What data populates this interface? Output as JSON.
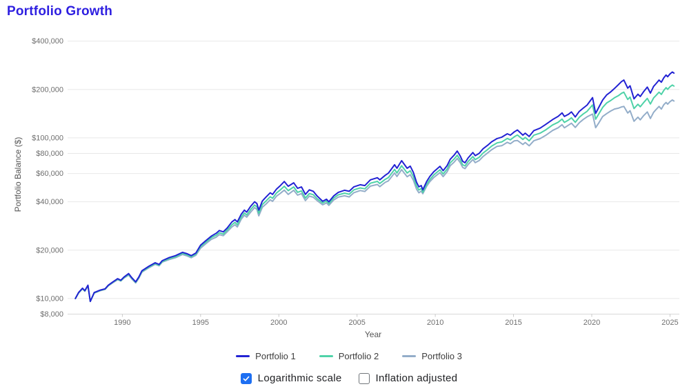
{
  "theme": {
    "title_color": "#2e1fe0",
    "checkbox_blue": "#1d6ff2",
    "grid_color": "#e8e8e8",
    "axis_line_color": "#d9d9d9",
    "tick_mark_color": "#c9c9c9",
    "tick_text_color": "#6e6e6e",
    "axis_title_text_color": "#555555"
  },
  "controls": {
    "log_scale": {
      "label": "Logarithmic scale",
      "checked": true
    },
    "inflation_adjusted": {
      "label": "Inflation adjusted",
      "checked": false
    }
  },
  "chart_data": {
    "type": "line",
    "title": "Portfolio Growth",
    "xlabel": "Year",
    "ylabel": "Portfolio Balance ($)",
    "x_scale": "linear",
    "y_scale": "log",
    "grid": "horizontal",
    "legend_position": "bottom",
    "x_range": [
      1986.5,
      2025.6
    ],
    "y_range": [
      8000,
      440000
    ],
    "x_ticks": [
      1990,
      1995,
      2000,
      2005,
      2010,
      2015,
      2020,
      2025
    ],
    "y_ticks": [
      8000,
      10000,
      20000,
      40000,
      60000,
      80000,
      100000,
      200000,
      400000
    ],
    "y_tick_labels": [
      "$8,000",
      "$10,000",
      "$20,000",
      "$40,000",
      "$60,000",
      "$80,000",
      "$100,000",
      "$200,000",
      "$400,000"
    ],
    "x": [
      1987.0,
      1987.2,
      1987.45,
      1987.6,
      1987.8,
      1987.95,
      1988.2,
      1988.6,
      1988.9,
      1989.1,
      1989.4,
      1989.7,
      1989.9,
      1990.1,
      1990.4,
      1990.6,
      1990.85,
      1991.05,
      1991.25,
      1991.7,
      1992.1,
      1992.35,
      1992.55,
      1993.0,
      1993.4,
      1993.85,
      1994.15,
      1994.4,
      1994.7,
      1995.0,
      1995.35,
      1995.7,
      1996.0,
      1996.2,
      1996.45,
      1996.7,
      1997.0,
      1997.2,
      1997.35,
      1997.6,
      1997.8,
      1997.95,
      1998.2,
      1998.45,
      1998.6,
      1998.72,
      1998.95,
      1999.2,
      1999.45,
      1999.6,
      1999.85,
      2000.1,
      2000.35,
      2000.6,
      2000.95,
      2001.2,
      2001.45,
      2001.7,
      2001.95,
      2002.2,
      2002.45,
      2002.8,
      2003.05,
      2003.2,
      2003.5,
      2003.8,
      2004.2,
      2004.5,
      2004.8,
      2005.2,
      2005.5,
      2005.85,
      2006.3,
      2006.45,
      2006.8,
      2007.0,
      2007.4,
      2007.55,
      2007.85,
      2008.2,
      2008.4,
      2008.6,
      2008.8,
      2008.95,
      2009.1,
      2009.2,
      2009.45,
      2009.65,
      2009.9,
      2010.1,
      2010.3,
      2010.5,
      2010.75,
      2010.95,
      2011.2,
      2011.4,
      2011.6,
      2011.75,
      2011.9,
      2012.1,
      2012.4,
      2012.55,
      2012.8,
      2013.05,
      2013.35,
      2013.6,
      2013.95,
      2014.25,
      2014.6,
      2014.8,
      2015.05,
      2015.25,
      2015.6,
      2015.75,
      2016.0,
      2016.3,
      2016.7,
      2017.05,
      2017.5,
      2017.85,
      2018.1,
      2018.25,
      2018.5,
      2018.7,
      2018.95,
      2019.2,
      2019.45,
      2019.7,
      2020.05,
      2020.25,
      2020.45,
      2020.7,
      2020.95,
      2021.2,
      2021.45,
      2021.7,
      2021.9,
      2022.05,
      2022.3,
      2022.45,
      2022.7,
      2022.95,
      2023.1,
      2023.3,
      2023.55,
      2023.75,
      2023.95,
      2024.1,
      2024.3,
      2024.45,
      2024.6,
      2024.75,
      2024.85,
      2025.0,
      2025.15,
      2025.25
    ],
    "series": [
      {
        "name": "Portfolio 1",
        "color": "#2222d3",
        "values_usd": [
          10000,
          10900,
          11600,
          11200,
          12100,
          9600,
          10900,
          11300,
          11500,
          12100,
          12700,
          13300,
          13000,
          13600,
          14300,
          13500,
          12700,
          13600,
          14900,
          15900,
          16700,
          16300,
          17200,
          18000,
          18500,
          19400,
          19000,
          18500,
          19200,
          21500,
          23000,
          24500,
          25500,
          26500,
          26000,
          27500,
          30000,
          31000,
          30000,
          33500,
          35500,
          34500,
          37500,
          40000,
          39000,
          35500,
          40500,
          43000,
          45500,
          44500,
          48000,
          50500,
          53500,
          50000,
          52500,
          48500,
          49500,
          44500,
          47500,
          46500,
          43500,
          40300,
          41500,
          40000,
          43500,
          45800,
          47200,
          46500,
          49600,
          51100,
          50500,
          54800,
          56500,
          54800,
          58500,
          60300,
          68000,
          64700,
          72100,
          64700,
          66700,
          61000,
          53000,
          49600,
          50500,
          47500,
          53500,
          57500,
          61500,
          64000,
          66500,
          62500,
          67000,
          73500,
          78000,
          82800,
          77000,
          71500,
          70000,
          75000,
          81000,
          77500,
          80000,
          85500,
          90000,
          94500,
          99000,
          101000,
          106000,
          104000,
          109000,
          112000,
          104000,
          107000,
          102000,
          111000,
          115000,
          121000,
          130000,
          136000,
          143000,
          136000,
          140000,
          145000,
          135000,
          146000,
          153000,
          160000,
          178000,
          142000,
          155000,
          172000,
          185000,
          193000,
          203000,
          214000,
          224000,
          229000,
          204000,
          211000,
          175000,
          187000,
          181000,
          193000,
          207000,
          190000,
          209000,
          217000,
          229000,
          222000,
          236000,
          246000,
          240000,
          250000,
          257000,
          253000
        ]
      },
      {
        "name": "Portfolio 2",
        "color": "#4fd2a8",
        "values_usd": [
          10000,
          10850,
          11550,
          11150,
          12050,
          9600,
          10850,
          11250,
          11450,
          12050,
          12650,
          13200,
          12900,
          13500,
          14150,
          13400,
          12600,
          13500,
          14750,
          15700,
          16500,
          16100,
          17000,
          17750,
          18200,
          19100,
          18700,
          18200,
          18900,
          21100,
          22500,
          24000,
          24800,
          25700,
          25200,
          26700,
          28800,
          29800,
          28800,
          32200,
          34100,
          33100,
          35800,
          38200,
          37200,
          34000,
          38500,
          40600,
          43000,
          42100,
          45400,
          47500,
          50000,
          46900,
          49500,
          45800,
          46800,
          42200,
          45000,
          44300,
          41800,
          39300,
          40500,
          39000,
          42200,
          44200,
          45300,
          44600,
          47500,
          48800,
          48200,
          52200,
          53600,
          52000,
          55200,
          56600,
          63600,
          60500,
          67100,
          60500,
          62400,
          57500,
          50300,
          47400,
          48400,
          45800,
          51400,
          55000,
          58700,
          61000,
          63300,
          59600,
          63800,
          69900,
          73800,
          78000,
          72900,
          68000,
          66900,
          71300,
          76500,
          73200,
          75600,
          80400,
          84600,
          88800,
          93100,
          94400,
          99100,
          97200,
          101600,
          104200,
          97800,
          100600,
          95900,
          103800,
          107000,
          112000,
          120300,
          125100,
          130900,
          124800,
          128800,
          133400,
          124900,
          134300,
          140800,
          146400,
          160200,
          130600,
          141100,
          154800,
          164700,
          170600,
          177600,
          183000,
          189300,
          192400,
          173400,
          179400,
          152300,
          161800,
          156200,
          165000,
          176000,
          162500,
          177000,
          183400,
          192400,
          186500,
          197100,
          205400,
          200400,
          208000,
          213300,
          210000
        ]
      },
      {
        "name": "Portfolio 3",
        "color": "#93adc9",
        "values_usd": [
          10000,
          10800,
          11500,
          11100,
          12000,
          9600,
          10800,
          11200,
          11400,
          12000,
          12550,
          13100,
          12850,
          13400,
          14000,
          13250,
          12500,
          13350,
          14600,
          15550,
          16350,
          16000,
          16850,
          17500,
          17950,
          18800,
          18400,
          17950,
          18600,
          20600,
          22000,
          23400,
          24100,
          25000,
          24600,
          26000,
          27900,
          28800,
          27900,
          31200,
          33000,
          32100,
          34500,
          36800,
          35900,
          32700,
          37000,
          38900,
          41200,
          40300,
          43400,
          45200,
          47300,
          44500,
          47200,
          44000,
          45000,
          40700,
          43400,
          42700,
          40700,
          38300,
          39400,
          38000,
          41000,
          42800,
          43600,
          42900,
          45600,
          47000,
          46400,
          50100,
          51300,
          49700,
          52900,
          54000,
          60500,
          57500,
          63400,
          57300,
          59000,
          54500,
          48000,
          45500,
          46600,
          44900,
          50000,
          53400,
          56600,
          58700,
          60800,
          57400,
          61300,
          67000,
          70500,
          74500,
          70000,
          65500,
          64400,
          68300,
          73300,
          70100,
          72200,
          76500,
          80600,
          84400,
          88600,
          89400,
          93800,
          92000,
          95900,
          96300,
          91000,
          93600,
          89300,
          96000,
          98900,
          103500,
          111200,
          115600,
          120800,
          115600,
          119700,
          123300,
          116100,
          124100,
          130100,
          135200,
          140600,
          115700,
          124000,
          135900,
          141500,
          146700,
          151200,
          153000,
          155700,
          156900,
          142800,
          147700,
          126900,
          134600,
          129400,
          137000,
          145000,
          132100,
          144200,
          149700,
          156900,
          151000,
          160500,
          166100,
          162000,
          168000,
          172200,
          169500
        ]
      }
    ]
  }
}
